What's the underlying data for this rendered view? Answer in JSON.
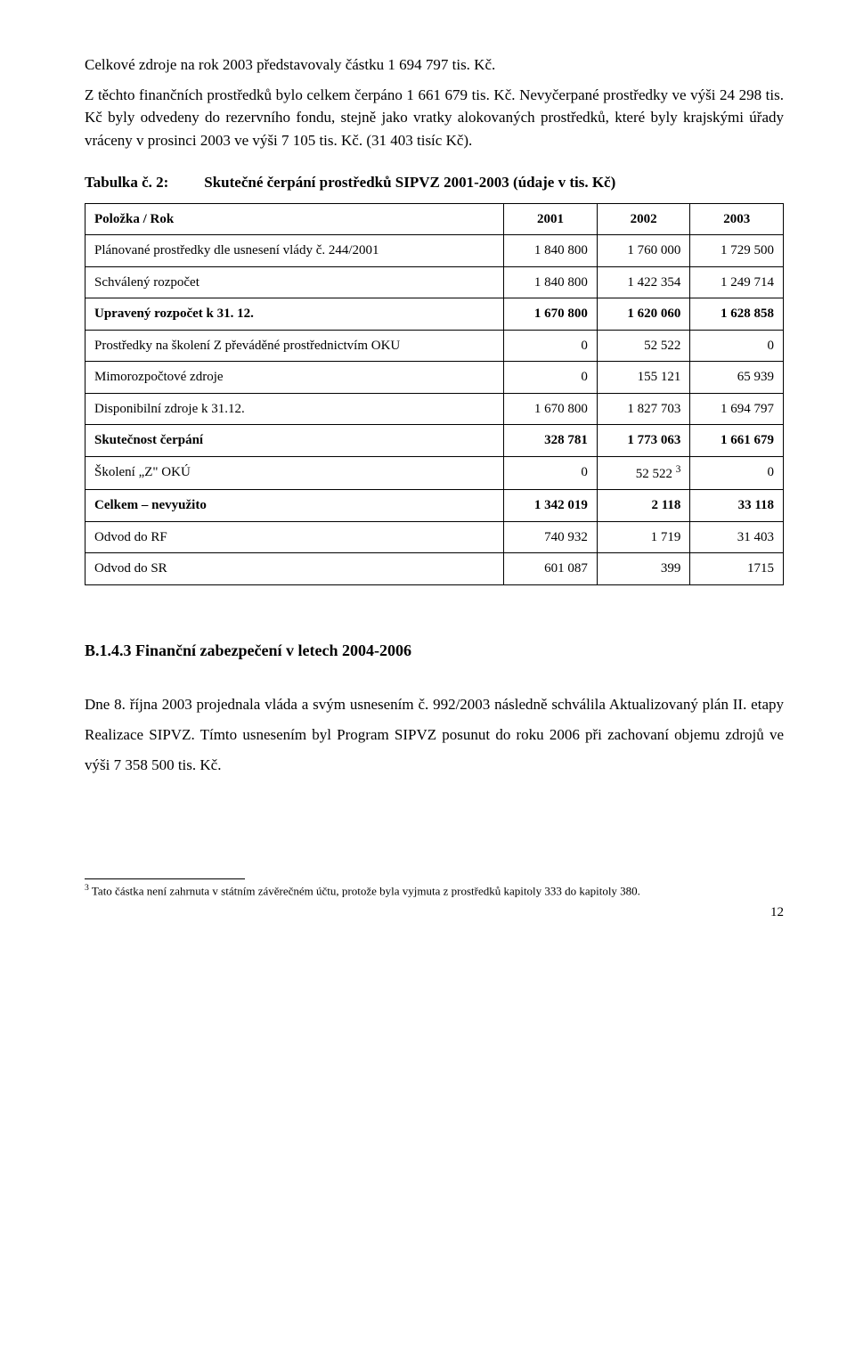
{
  "intro": {
    "p1": "Celkové zdroje na rok 2003 představovaly částku 1 694 797 tis. Kč.",
    "p2": "Z těchto finančních prostředků bylo celkem čerpáno 1 661 679 tis. Kč. Nevyčerpané prostředky ve výši 24 298 tis. Kč byly odvedeny do rezervního fondu, stejně jako vratky alokovaných prostředků, které byly krajskými úřady vráceny v prosinci 2003 ve výši 7 105 tis. Kč. (31 403 tisíc Kč)."
  },
  "table_caption": {
    "label": "Tabulka č. 2:",
    "title": "Skutečné čerpání prostředků SIPVZ 2001-2003 (údaje v tis. Kč)"
  },
  "table": {
    "header": {
      "c0": "Položka / Rok",
      "c1": "2001",
      "c2": "2002",
      "c3": "2003"
    },
    "rows": [
      {
        "label": "Plánované prostředky dle usnesení vlády č. 244/2001",
        "v1": "1 840 800",
        "v2": "1 760 000",
        "v3": "1 729 500",
        "bold": false
      },
      {
        "label": "Schválený rozpočet",
        "v1": "1 840 800",
        "v2": "1 422 354",
        "v3": "1 249 714",
        "bold": false
      },
      {
        "label": "Upravený rozpočet k 31. 12.",
        "v1": "1 670 800",
        "v2": "1 620 060",
        "v3": "1 628 858",
        "bold": true
      },
      {
        "label": "Prostředky na školení Z převáděné prostřednictvím OKU",
        "v1": "0",
        "v2": "52 522",
        "v3": "0",
        "bold": false
      },
      {
        "label": "Mimorozpočtové zdroje",
        "v1": "0",
        "v2": "155 121",
        "v3": "65 939",
        "bold": false
      },
      {
        "label": "Disponibilní zdroje k 31.12.",
        "v1": "1 670 800",
        "v2": "1 827 703",
        "v3": "1 694 797",
        "bold": false
      },
      {
        "label": "Skutečnost čerpání",
        "v1": "328 781",
        "v2": "1 773 063",
        "v3": "1 661 679",
        "bold": true
      },
      {
        "label": "Školení „Z\" OKÚ",
        "v1": "0",
        "v2_html": "52 522 <sup>3</sup>",
        "v3": "0",
        "bold": false
      },
      {
        "label": "Celkem – nevyužito",
        "v1": "1 342 019",
        "v2": "2 118",
        "v3": "33 118",
        "bold": true
      },
      {
        "label": "Odvod do RF",
        "v1": "740 932",
        "v2": "1 719",
        "v3": "31 403",
        "bold": false
      },
      {
        "label": "Odvod do SR",
        "v1": "601 087",
        "v2": "399",
        "v3": "1715",
        "bold": false
      }
    ]
  },
  "section": {
    "heading": "B.1.4.3 Finanční zabezpečení v letech 2004-2006",
    "body": "Dne 8. října 2003 projednala vláda a svým usnesením č. 992/2003 následně schválila Aktualizovaný plán II. etapy Realizace SIPVZ. Tímto usnesením byl Program SIPVZ posunut do roku 2006 při zachovaní objemu zdrojů ve výši 7 358 500 tis. Kč."
  },
  "footnote": {
    "marker": "3",
    "text": " Tato částka není zahrnuta v státním závěrečném účtu, protože byla vyjmuta z prostředků kapitoly 333 do kapitoly 380."
  },
  "pagenum": "12"
}
